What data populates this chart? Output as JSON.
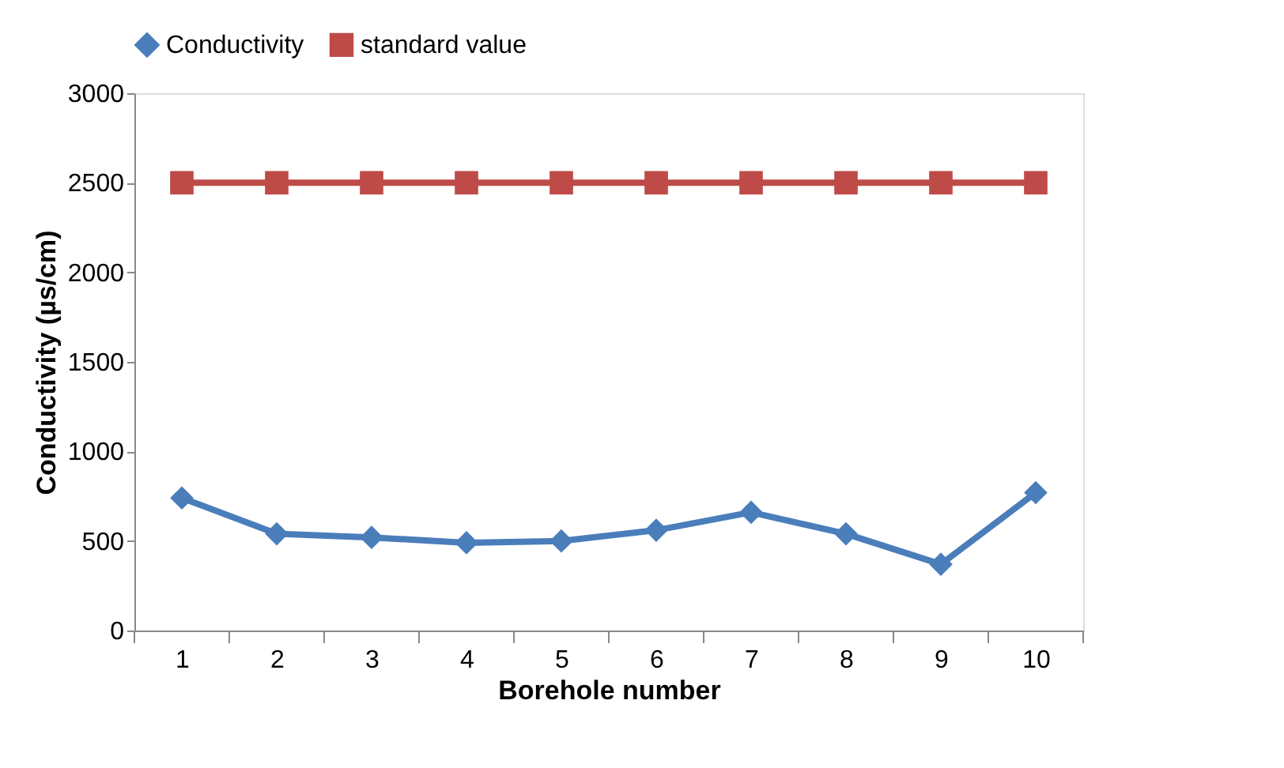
{
  "chart_data": {
    "type": "line",
    "xlabel": "Borehole number",
    "ylabel": "Conductivity (µs/cm)",
    "categories": [
      "1",
      "2",
      "3",
      "4",
      "5",
      "6",
      "7",
      "8",
      "9",
      "10"
    ],
    "series": [
      {
        "name": "Conductivity",
        "color": "#4a7ebb",
        "marker": "diamond",
        "values": [
          740,
          540,
          520,
          490,
          500,
          560,
          660,
          540,
          370,
          770
        ]
      },
      {
        "name": "standard value",
        "color": "#be4b48",
        "marker": "square",
        "values": [
          2500,
          2500,
          2500,
          2500,
          2500,
          2500,
          2500,
          2500,
          2500,
          2500
        ]
      }
    ],
    "ylim": [
      0,
      3000
    ],
    "yticks": [
      0,
      500,
      1000,
      1500,
      2000,
      2500,
      3000
    ],
    "grid": false,
    "legend": "top"
  }
}
